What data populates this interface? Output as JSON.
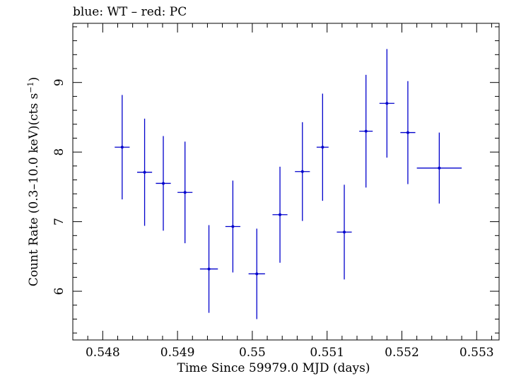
{
  "chart_data": {
    "type": "scatter",
    "title": "blue: WT – red: PC",
    "xlabel": "Time Since 59979.0 MJD (days)",
    "ylabel": "Count Rate (0.3–10.0 keV)(cts s",
    "ylabel_sup": "−1",
    "ylabel_tail": ")",
    "xlim": [
      0.5476,
      0.5533
    ],
    "ylim": [
      5.3,
      9.85
    ],
    "x_ticks": [
      0.548,
      0.549,
      0.55,
      0.551,
      0.552,
      0.553
    ],
    "x_tick_labels": [
      "0.548",
      "0.549",
      "0.55",
      "0.551",
      "0.552",
      "0.553"
    ],
    "y_ticks": [
      6,
      7,
      8,
      9
    ],
    "y_tick_labels": [
      "6",
      "7",
      "8",
      "9"
    ],
    "grid": false,
    "series": [
      {
        "color": "#0000cc",
        "points": [
          {
            "x": 0.54826,
            "xerr": 0.0001,
            "y": 8.07,
            "yerr": 0.75
          },
          {
            "x": 0.54856,
            "xerr": 0.0001,
            "y": 7.71,
            "yerr": 0.77
          },
          {
            "x": 0.54881,
            "xerr": 0.0001,
            "y": 7.55,
            "yerr": 0.68
          },
          {
            "x": 0.5491,
            "xerr": 0.0001,
            "y": 7.42,
            "yerr": 0.73
          },
          {
            "x": 0.54942,
            "xerr": 0.00012,
            "y": 6.32,
            "yerr": 0.63
          },
          {
            "x": 0.54974,
            "xerr": 0.0001,
            "y": 6.93,
            "yerr": 0.66
          },
          {
            "x": 0.55006,
            "xerr": 0.00011,
            "y": 6.25,
            "yerr": 0.65
          },
          {
            "x": 0.55037,
            "xerr": 0.0001,
            "y": 7.1,
            "yerr": 0.69
          },
          {
            "x": 0.55067,
            "xerr": 0.0001,
            "y": 7.72,
            "yerr": 0.71
          },
          {
            "x": 0.55094,
            "xerr": 8e-05,
            "y": 8.07,
            "yerr": 0.77
          },
          {
            "x": 0.55123,
            "xerr": 0.0001,
            "y": 6.85,
            "yerr": 0.68
          },
          {
            "x": 0.55152,
            "xerr": 9e-05,
            "y": 8.3,
            "yerr": 0.81
          },
          {
            "x": 0.5518,
            "xerr": 0.0001,
            "y": 8.7,
            "yerr": 0.78
          },
          {
            "x": 0.55208,
            "xerr": 0.0001,
            "y": 8.28,
            "yerr": 0.74
          },
          {
            "x": 0.5525,
            "xerr": 0.0003,
            "y": 7.77,
            "yerr": 0.51
          }
        ]
      }
    ]
  }
}
